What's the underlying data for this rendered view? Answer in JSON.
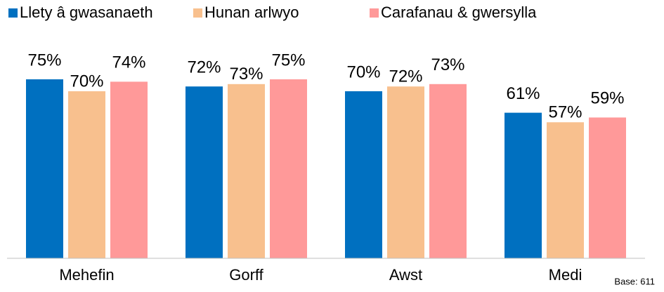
{
  "chart_data": {
    "type": "bar",
    "categories": [
      "Mehefin",
      "Gorff",
      "Awst",
      "Medi"
    ],
    "series": [
      {
        "name": "Llety â gwasanaeth",
        "color": "#0070c0",
        "values": [
          75,
          72,
          70,
          61
        ],
        "value_labels": [
          "75%",
          "72%",
          "70%",
          "61%"
        ]
      },
      {
        "name": "Hunan arlwyo",
        "color": "#f8c08e",
        "values": [
          70,
          73,
          72,
          57
        ],
        "value_labels": [
          "70%",
          "73%",
          "72%",
          "57%"
        ]
      },
      {
        "name": "Carafanau & gwersylla",
        "color": "#ff9999",
        "values": [
          74,
          75,
          73,
          59
        ],
        "value_labels": [
          "74%",
          "75%",
          "73%",
          "59%"
        ]
      }
    ],
    "ylim": [
      0,
      100
    ],
    "legend": "top",
    "annotation": "Base: 611"
  }
}
